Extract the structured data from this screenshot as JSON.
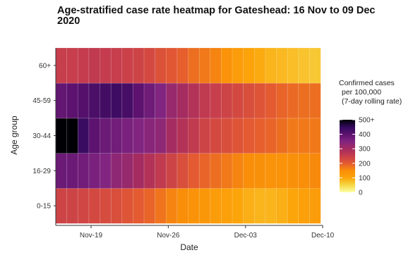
{
  "chart_data": {
    "type": "heatmap",
    "title": "Age-stratified case rate heatmap for Gateshead: 16 Nov to 09 Dec 2020",
    "xlabel": "Date",
    "ylabel": "Age group",
    "x_ticks": [
      {
        "label": "Nov-19",
        "date": "2020-11-19"
      },
      {
        "label": "Nov-26",
        "date": "2020-11-26"
      },
      {
        "label": "Dec-03",
        "date": "2020-12-03"
      },
      {
        "label": "Dec-10",
        "date": "2020-12-10"
      }
    ],
    "dates": [
      "2020-11-16",
      "2020-11-17",
      "2020-11-18",
      "2020-11-19",
      "2020-11-20",
      "2020-11-21",
      "2020-11-22",
      "2020-11-23",
      "2020-11-24",
      "2020-11-25",
      "2020-11-26",
      "2020-11-27",
      "2020-11-28",
      "2020-11-29",
      "2020-11-30",
      "2020-12-01",
      "2020-12-02",
      "2020-12-03",
      "2020-12-04",
      "2020-12-05",
      "2020-12-06",
      "2020-12-07",
      "2020-12-08",
      "2020-12-09"
    ],
    "age_groups": [
      "0-15",
      "16-29",
      "30-44",
      "45-59",
      "60+"
    ],
    "values": {
      "60+": [
        250,
        250,
        255,
        260,
        255,
        250,
        245,
        240,
        230,
        215,
        205,
        195,
        180,
        170,
        160,
        140,
        120,
        105,
        95,
        85,
        80,
        75,
        70,
        65
      ],
      "45-59": [
        390,
        400,
        410,
        420,
        430,
        435,
        425,
        400,
        375,
        350,
        320,
        300,
        280,
        260,
        250,
        240,
        230,
        220,
        210,
        200,
        190,
        185,
        180,
        180
      ],
      "30-44": [
        510,
        500,
        440,
        400,
        380,
        370,
        360,
        350,
        340,
        330,
        300,
        280,
        260,
        240,
        230,
        220,
        210,
        200,
        195,
        190,
        180,
        170,
        170,
        170
      ],
      "16-29": [
        380,
        380,
        370,
        360,
        350,
        330,
        320,
        300,
        280,
        260,
        240,
        220,
        200,
        190,
        180,
        170,
        160,
        150,
        145,
        140,
        140,
        145,
        150,
        155
      ],
      "0-15": [
        240,
        240,
        235,
        230,
        225,
        220,
        210,
        200,
        190,
        175,
        160,
        150,
        140,
        130,
        120,
        110,
        100,
        90,
        85,
        85,
        90,
        100,
        110,
        120
      ]
    },
    "legend": {
      "title": "Confirmed cases\nper 100,000\n(7-day rolling rate)",
      "ticks": [
        0,
        100,
        200,
        300,
        400,
        500
      ],
      "tick_labels": [
        "0",
        "100",
        "200",
        "300",
        "400",
        "500+"
      ],
      "min": 0,
      "max": 500,
      "position": "right"
    },
    "colorscale": "inferno",
    "grid": true
  }
}
